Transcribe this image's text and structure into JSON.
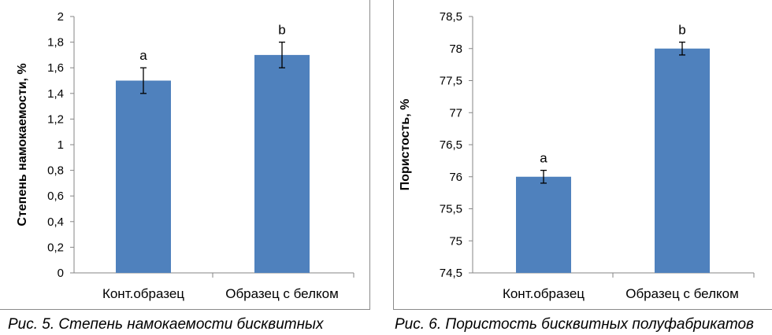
{
  "captions": {
    "left": "Рис. 5. Степень намокаемости бисквитных",
    "right": "Рис. 6. Пористость бисквитных полуфабрикатов"
  },
  "colors": {
    "bar": "#4f81bd",
    "axis": "#868686",
    "frame": "#8a8a8a"
  },
  "chart_data": [
    {
      "type": "bar",
      "title": "",
      "xlabel": "",
      "ylabel": "Степень намокаемости, %",
      "categories": [
        "Конт.образец",
        "Образец с белком"
      ],
      "values": [
        1.5,
        1.7
      ],
      "errors": [
        0.1,
        0.1
      ],
      "letters": [
        "a",
        "b"
      ],
      "ylim": [
        0,
        2
      ],
      "yticks": [
        "0",
        "0,2",
        "0,4",
        "0,6",
        "0,8",
        "1",
        "1,2",
        "1,4",
        "1,6",
        "1,8",
        "2"
      ],
      "grid": false,
      "legend": "none"
    },
    {
      "type": "bar",
      "title": "",
      "xlabel": "",
      "ylabel": "Пористость, %",
      "categories": [
        "Конт.образец",
        "Образец с белком"
      ],
      "values": [
        76,
        78
      ],
      "errors": [
        0.1,
        0.1
      ],
      "letters": [
        "a",
        "b"
      ],
      "ylim": [
        74.5,
        78.5
      ],
      "yticks": [
        "74,5",
        "75",
        "75,5",
        "76",
        "76,5",
        "77",
        "77,5",
        "78",
        "78,5"
      ],
      "grid": false,
      "legend": "none"
    }
  ]
}
